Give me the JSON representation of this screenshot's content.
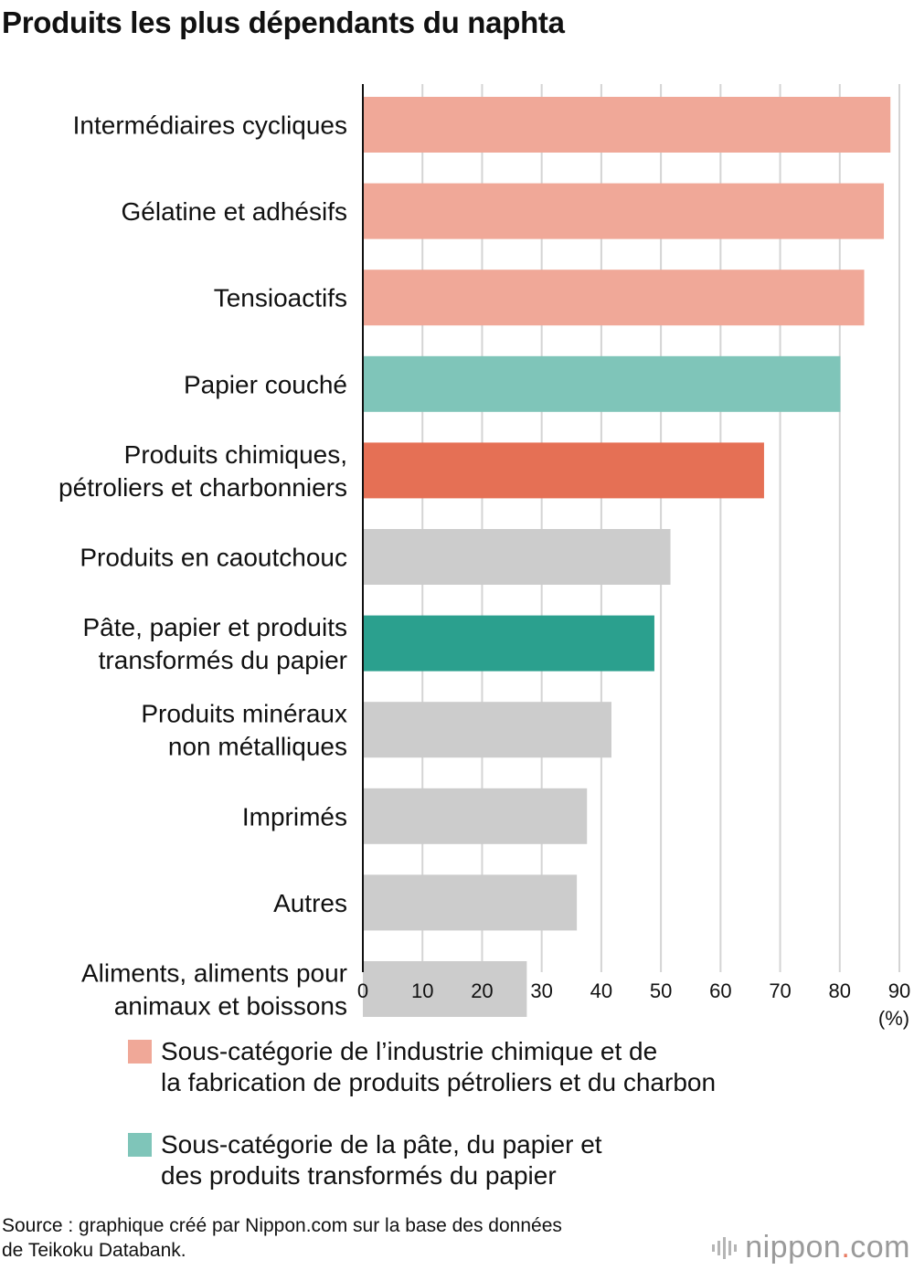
{
  "title": "Produits les plus dépendants du naphta",
  "chart_data": {
    "type": "bar",
    "orientation": "horizontal",
    "categories": [
      [
        "Intermédiaires cycliques"
      ],
      [
        "Gélatine et adhésifs"
      ],
      [
        "Tensioactifs"
      ],
      [
        "Papier couché"
      ],
      [
        "Produits chimiques,",
        "pétroliers et charbonniers"
      ],
      [
        "Produits en caoutchouc"
      ],
      [
        "Pâte, papier et produits",
        "transformés du papier"
      ],
      [
        "Produits minéraux",
        "non métalliques"
      ],
      [
        "Imprimés"
      ],
      [
        "Autres"
      ],
      [
        "Aliments, aliments pour",
        "animaux et boissons"
      ]
    ],
    "values": [
      88.5,
      87.4,
      84.1,
      80.1,
      67.3,
      51.6,
      48.9,
      41.7,
      37.6,
      35.9,
      27.5
    ],
    "bar_colors": [
      "#f0a898",
      "#f0a898",
      "#f0a898",
      "#7fc5b9",
      "#e57055",
      "#cccccc",
      "#2ba08e",
      "#cccccc",
      "#cccccc",
      "#cccccc",
      "#cccccc"
    ],
    "xlim": [
      0,
      90
    ],
    "xticks": [
      0,
      10,
      20,
      30,
      40,
      50,
      60,
      70,
      80,
      90
    ],
    "unit_label": "(%)",
    "grid": true
  },
  "legend": [
    {
      "color": "#f0a898",
      "text": "Sous-catégorie de l’industrie chimique et de\nla fabrication de produits pétroliers et du charbon"
    },
    {
      "color": "#7fc5b9",
      "text": "Sous-catégorie de la pâte, du papier et\ndes produits transformés du papier"
    }
  ],
  "source": "Source : graphique créé par Nippon.com sur la base des données\nde Teikoku Databank.",
  "brand": {
    "name": "nippon",
    "dot": ".",
    "suffix": "com",
    "icon": "nippon-logo-icon"
  }
}
